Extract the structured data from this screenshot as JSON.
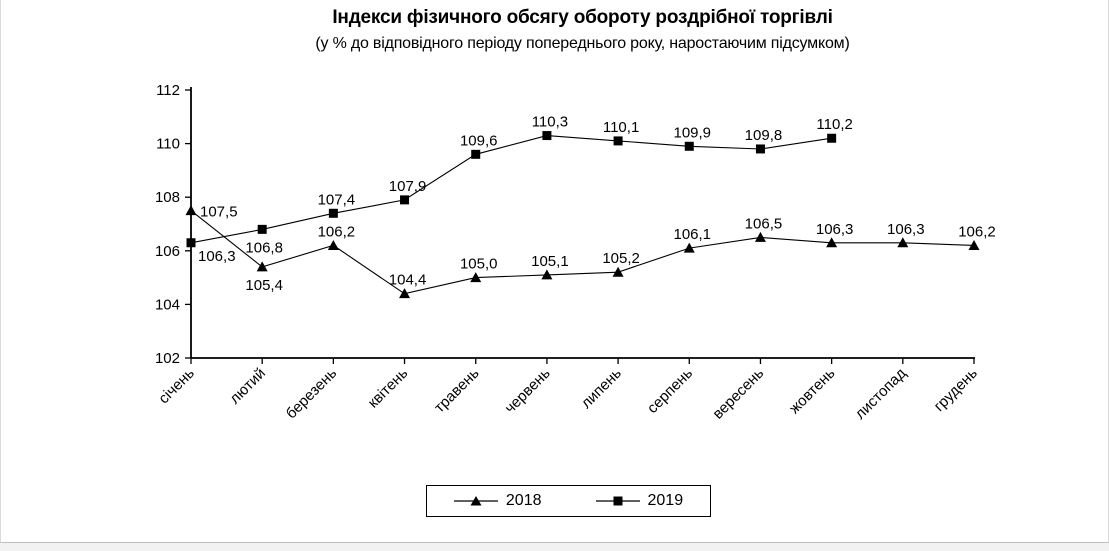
{
  "chart_data": {
    "type": "line",
    "title": "Індекси фізичного обсягу обороту роздрібної торгівлі",
    "subtitle": "(у % до відповідного періоду попереднього року, наростаючим підсумком)",
    "categories": [
      "січень",
      "лютий",
      "березень",
      "квітень",
      "травень",
      "червень",
      "липень",
      "серпень",
      "вересень",
      "жовтень",
      "листопад",
      "грудень"
    ],
    "series": [
      {
        "name": "2018",
        "marker": "triangle",
        "color": "#000000",
        "values": [
          107.5,
          105.4,
          106.2,
          104.4,
          105.0,
          105.1,
          105.2,
          106.1,
          106.5,
          106.3,
          106.3,
          106.2
        ],
        "label_positions": [
          "right",
          "below",
          "above",
          "above",
          "above",
          "above",
          "above",
          "above",
          "above",
          "above",
          "above",
          "above"
        ]
      },
      {
        "name": "2019",
        "marker": "square",
        "color": "#000000",
        "values": [
          106.3,
          106.8,
          107.4,
          107.9,
          109.6,
          110.3,
          110.1,
          109.9,
          109.8,
          110.2
        ],
        "label_positions": [
          "below-right",
          "below",
          "above",
          "above",
          "above",
          "above",
          "above",
          "above",
          "above",
          "above"
        ]
      }
    ],
    "ylim": [
      102,
      112
    ],
    "ytick_step": 2,
    "grid": false,
    "legend_position": "bottom",
    "decimal_separator": ",",
    "axis_color": "#000000",
    "text_color": "#000000"
  }
}
